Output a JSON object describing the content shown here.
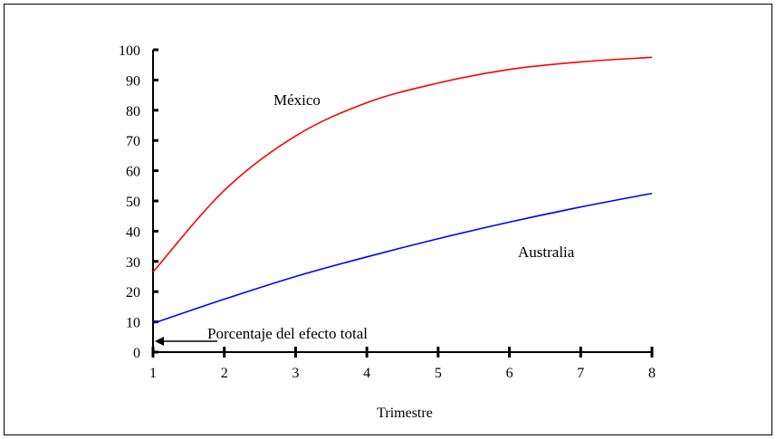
{
  "chart_data": {
    "type": "line",
    "title": "",
    "xlabel": "Trimestre",
    "ylabel": "",
    "x": [
      1,
      2,
      3,
      4,
      5,
      6,
      7,
      8
    ],
    "ylim": [
      0,
      100
    ],
    "xlim": [
      1,
      8
    ],
    "y_ticks": [
      0,
      10,
      20,
      30,
      40,
      50,
      60,
      70,
      80,
      90,
      100
    ],
    "grid": false,
    "legend": "none",
    "series": [
      {
        "name": "México",
        "color": "#ff0000",
        "values": [
          26.5,
          53.5,
          71.5,
          82.5,
          89.0,
          93.5,
          96.0,
          97.5
        ]
      },
      {
        "name": "Australia",
        "color": "#0000ff",
        "values": [
          9.5,
          17.5,
          25.0,
          31.5,
          37.5,
          43.0,
          48.0,
          52.5
        ]
      }
    ],
    "annotations": [
      {
        "text": "Porcentaje del efecto total",
        "arrow": "left"
      }
    ]
  }
}
